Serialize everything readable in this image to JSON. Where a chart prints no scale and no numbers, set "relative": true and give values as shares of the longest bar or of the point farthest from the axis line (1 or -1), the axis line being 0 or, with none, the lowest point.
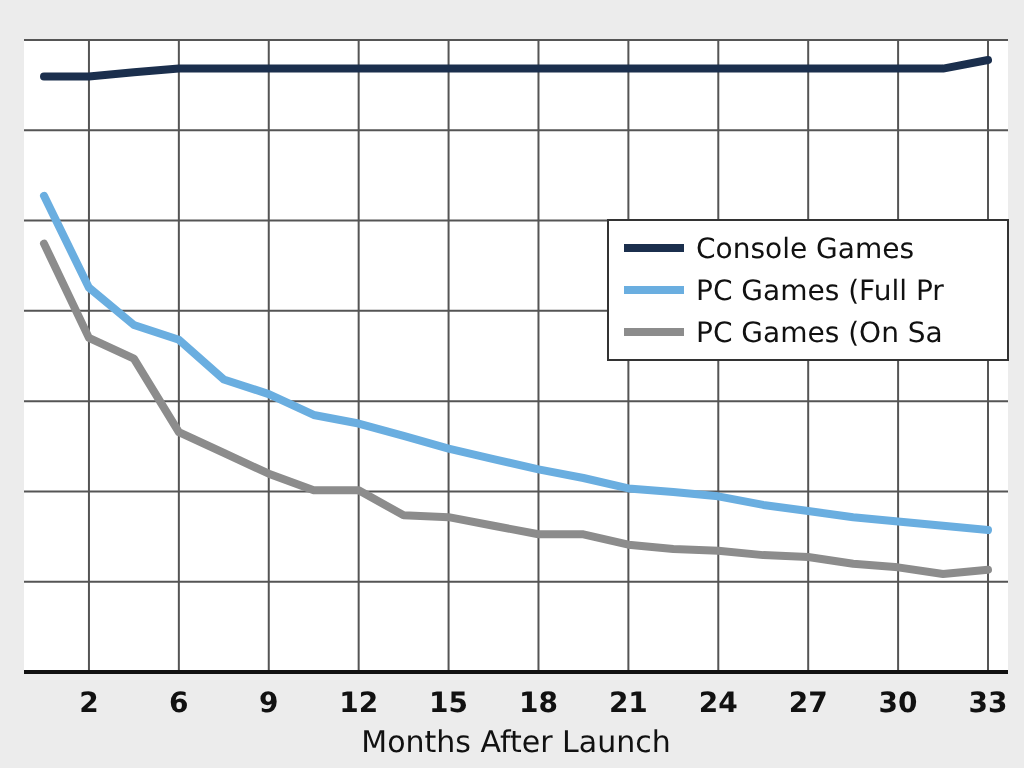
{
  "chart_data": {
    "type": "line",
    "xlabel": "Months After Launch",
    "relative": true,
    "grid": true,
    "legend": "right",
    "line_style": "solid",
    "categories": [
      null,
      "2",
      null,
      "6",
      null,
      "9",
      null,
      "12",
      null,
      "15",
      null,
      "18",
      null,
      "21",
      null,
      "24",
      null,
      "27",
      null,
      "30",
      null,
      "33"
    ],
    "series": [
      {
        "name": "Console Games",
        "color": "#1b2f4d",
        "values": [
          0.973,
          0.973,
          0.98,
          0.986,
          0.986,
          0.986,
          0.986,
          0.986,
          0.986,
          0.986,
          0.986,
          0.986,
          0.986,
          0.986,
          0.986,
          0.986,
          0.986,
          0.986,
          0.986,
          0.986,
          0.986,
          1
        ]
      },
      {
        "name": "PC Games (Full Pr",
        "color": "#6aaee0",
        "values": [
          0.778,
          0.628,
          0.567,
          0.543,
          0.478,
          0.454,
          0.42,
          0.406,
          0.386,
          0.365,
          0.348,
          0.331,
          0.317,
          0.3,
          0.294,
          0.287,
          0.273,
          0.263,
          0.253,
          0.246,
          0.239,
          0.232
        ]
      },
      {
        "name": "PC Games (On Sa",
        "color": "#8c8c8c",
        "values": [
          0.7,
          0.546,
          0.512,
          0.392,
          0.358,
          0.324,
          0.297,
          0.297,
          0.256,
          0.253,
          0.239,
          0.225,
          0.225,
          0.208,
          0.201,
          0.198,
          0.191,
          0.188,
          0.177,
          0.171,
          0.16,
          0.167
        ]
      }
    ]
  }
}
